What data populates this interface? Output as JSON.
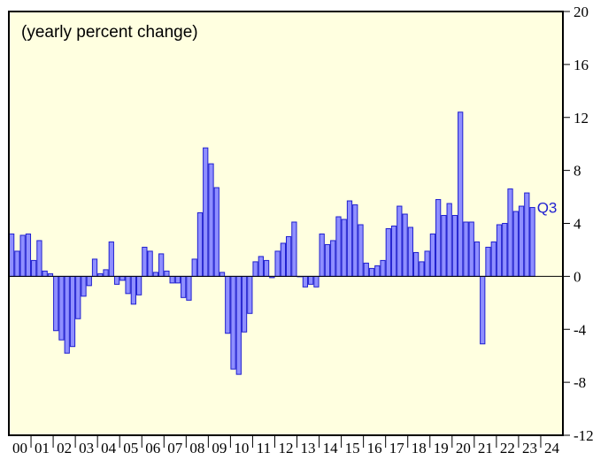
{
  "chart_data": {
    "type": "bar",
    "title": "(yearly percent change)",
    "annotation": "Q3",
    "years": [
      "00",
      "01",
      "02",
      "03",
      "04",
      "05",
      "06",
      "07",
      "08",
      "09",
      "10",
      "11",
      "12",
      "13",
      "14",
      "15",
      "16",
      "17",
      "18",
      "19",
      "20",
      "21",
      "22",
      "23",
      "24"
    ],
    "values": [
      3.2,
      1.9,
      3.1,
      3.2,
      1.2,
      2.7,
      0.4,
      0.2,
      -4.1,
      -4.8,
      -5.8,
      -5.3,
      -3.2,
      -1.5,
      -0.7,
      1.3,
      0.2,
      0.5,
      2.6,
      -0.6,
      -0.3,
      -1.3,
      -2.1,
      -1.4,
      2.2,
      1.9,
      0.3,
      1.7,
      0.4,
      -0.5,
      -0.5,
      -1.6,
      -1.8,
      1.3,
      4.8,
      9.7,
      8.5,
      6.7,
      0.3,
      -4.3,
      -7.0,
      -7.4,
      -4.2,
      -2.8,
      1.1,
      1.5,
      1.2,
      -0.1,
      1.9,
      2.5,
      3.0,
      4.1,
      0.0,
      -0.8,
      -0.6,
      -0.8,
      3.2,
      2.4,
      2.7,
      4.5,
      4.3,
      5.7,
      5.4,
      3.9,
      1.0,
      0.6,
      0.8,
      1.2,
      3.6,
      3.8,
      5.3,
      4.7,
      3.7,
      1.8,
      1.1,
      1.9,
      3.2,
      5.8,
      4.6,
      5.5,
      4.6,
      12.4,
      4.1,
      4.1,
      2.6,
      -5.1,
      2.2,
      2.6,
      3.9,
      4.0,
      6.6,
      4.9,
      5.3,
      6.3,
      5.2
    ],
    "color": "#8f8fff",
    "edge_color": "#2020d0",
    "background": "#ffffe0",
    "ylim": [
      -12,
      20
    ],
    "yticks": [
      -12,
      -8,
      -4,
      0,
      4,
      8,
      12,
      16,
      20
    ]
  }
}
